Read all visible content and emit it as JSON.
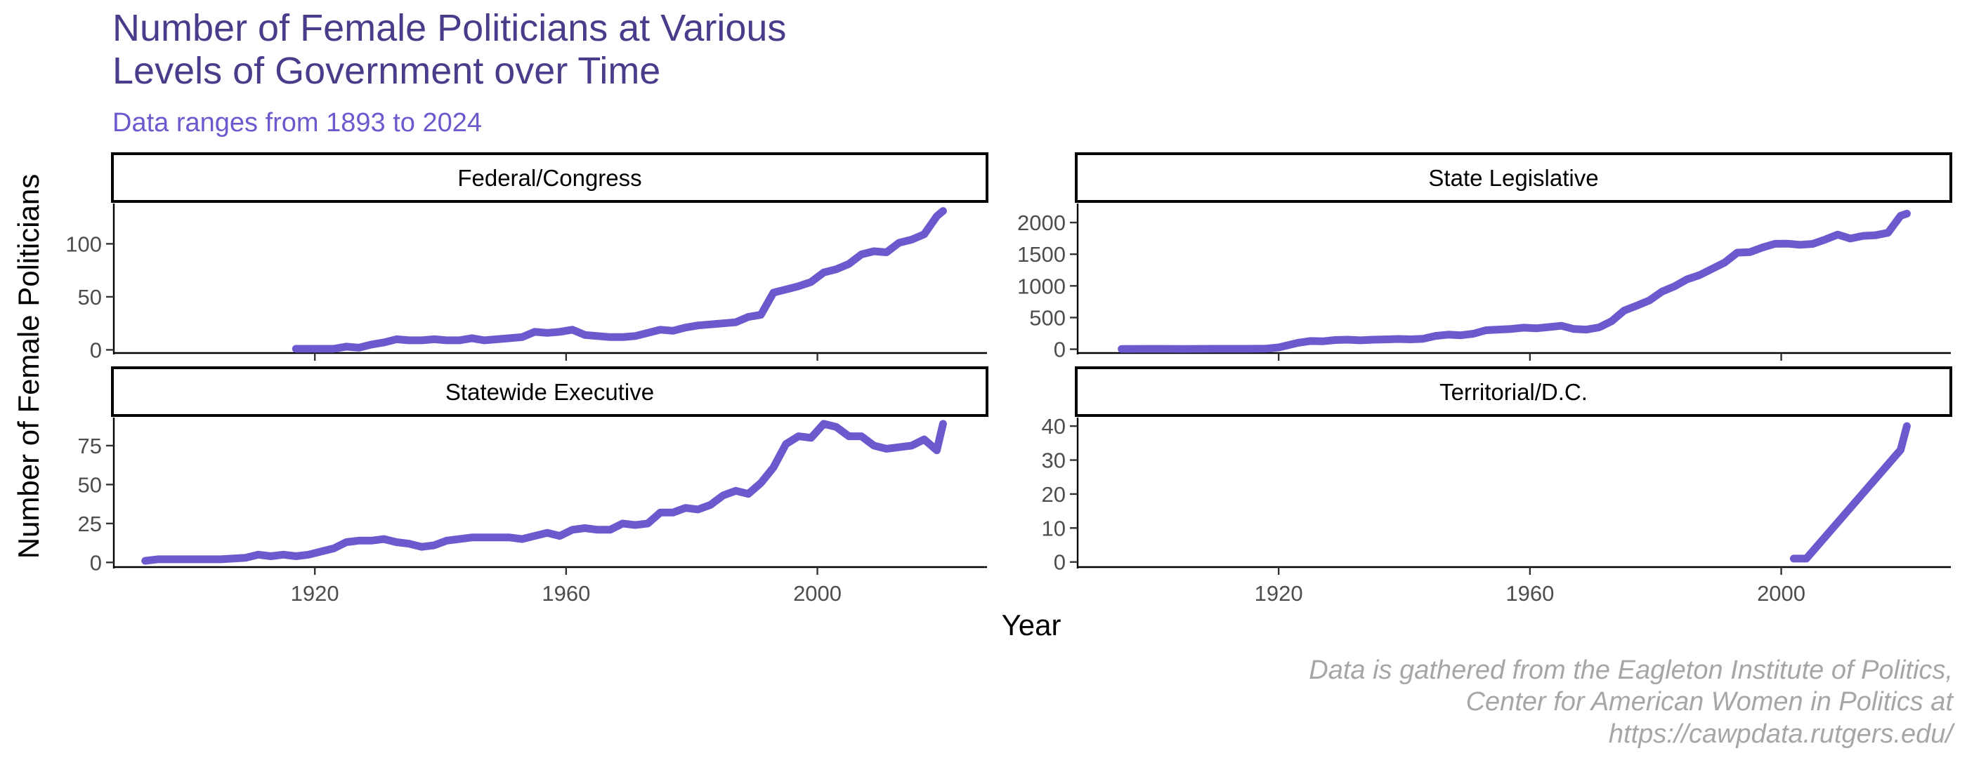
{
  "title_lines": [
    "Number of Female Politicians at Various",
    "Levels of Government over Time"
  ],
  "subtitle": "Data ranges from 1893 to 2024",
  "caption_lines": [
    "Data is gathered from the Eagleton Institute of Politics,",
    "Center for American Women in Politics at",
    "https://cawpdata.rutgers.edu/"
  ],
  "colors": {
    "title": "#483D8B",
    "subtitle": "#6A5ACD",
    "line": "#6A5ACD",
    "caption": "#a6a6a6"
  },
  "chart_data": {
    "type": "line",
    "xlabel": "Year",
    "ylabel": "Number of Female Politicians",
    "x_ticks": [
      1920,
      1960,
      2000
    ],
    "xlim": [
      1888,
      2027
    ],
    "panels": [
      {
        "label": "Federal/Congress",
        "ylim": [
          -3,
          138
        ],
        "y_ticks": [
          0,
          50,
          100
        ],
        "points": [
          [
            1917,
            1
          ],
          [
            1921,
            1
          ],
          [
            1923,
            1
          ],
          [
            1925,
            3
          ],
          [
            1927,
            2
          ],
          [
            1929,
            5
          ],
          [
            1931,
            7
          ],
          [
            1933,
            10
          ],
          [
            1935,
            9
          ],
          [
            1937,
            9
          ],
          [
            1939,
            10
          ],
          [
            1941,
            9
          ],
          [
            1943,
            9
          ],
          [
            1945,
            11
          ],
          [
            1947,
            9
          ],
          [
            1949,
            10
          ],
          [
            1951,
            11
          ],
          [
            1953,
            12
          ],
          [
            1955,
            17
          ],
          [
            1957,
            16
          ],
          [
            1959,
            17
          ],
          [
            1961,
            19
          ],
          [
            1963,
            14
          ],
          [
            1965,
            13
          ],
          [
            1967,
            12
          ],
          [
            1969,
            12
          ],
          [
            1971,
            13
          ],
          [
            1973,
            16
          ],
          [
            1975,
            19
          ],
          [
            1977,
            18
          ],
          [
            1979,
            21
          ],
          [
            1981,
            23
          ],
          [
            1983,
            24
          ],
          [
            1985,
            25
          ],
          [
            1987,
            26
          ],
          [
            1989,
            31
          ],
          [
            1991,
            33
          ],
          [
            1993,
            54
          ],
          [
            1995,
            57
          ],
          [
            1997,
            60
          ],
          [
            1999,
            64
          ],
          [
            2001,
            73
          ],
          [
            2003,
            76
          ],
          [
            2005,
            81
          ],
          [
            2007,
            90
          ],
          [
            2009,
            93
          ],
          [
            2011,
            92
          ],
          [
            2013,
            101
          ],
          [
            2015,
            104
          ],
          [
            2017,
            109
          ],
          [
            2019,
            126
          ],
          [
            2020,
            131
          ]
        ]
      },
      {
        "label": "State Legislative",
        "ylim": [
          -60,
          2300
        ],
        "y_ticks": [
          0,
          500,
          1000,
          1500,
          2000
        ],
        "points": [
          [
            1895,
            3
          ],
          [
            1900,
            5
          ],
          [
            1905,
            4
          ],
          [
            1910,
            6
          ],
          [
            1915,
            7
          ],
          [
            1918,
            10
          ],
          [
            1920,
            29
          ],
          [
            1923,
            100
          ],
          [
            1925,
            130
          ],
          [
            1927,
            125
          ],
          [
            1929,
            145
          ],
          [
            1931,
            150
          ],
          [
            1933,
            140
          ],
          [
            1935,
            150
          ],
          [
            1937,
            155
          ],
          [
            1939,
            162
          ],
          [
            1941,
            156
          ],
          [
            1943,
            165
          ],
          [
            1945,
            210
          ],
          [
            1947,
            230
          ],
          [
            1949,
            220
          ],
          [
            1951,
            245
          ],
          [
            1953,
            300
          ],
          [
            1955,
            310
          ],
          [
            1957,
            320
          ],
          [
            1959,
            340
          ],
          [
            1961,
            330
          ],
          [
            1963,
            350
          ],
          [
            1965,
            370
          ],
          [
            1967,
            319
          ],
          [
            1969,
            310
          ],
          [
            1971,
            344
          ],
          [
            1973,
            442
          ],
          [
            1975,
            610
          ],
          [
            1977,
            688
          ],
          [
            1979,
            770
          ],
          [
            1981,
            908
          ],
          [
            1983,
            991
          ],
          [
            1985,
            1103
          ],
          [
            1987,
            1170
          ],
          [
            1989,
            1270
          ],
          [
            1991,
            1368
          ],
          [
            1993,
            1524
          ],
          [
            1995,
            1532
          ],
          [
            1997,
            1605
          ],
          [
            1999,
            1664
          ],
          [
            2001,
            1666
          ],
          [
            2003,
            1648
          ],
          [
            2005,
            1663
          ],
          [
            2007,
            1732
          ],
          [
            2009,
            1809
          ],
          [
            2011,
            1747
          ],
          [
            2013,
            1789
          ],
          [
            2015,
            1799
          ],
          [
            2017,
            1839
          ],
          [
            2019,
            2107
          ],
          [
            2020,
            2140
          ]
        ]
      },
      {
        "label": "Statewide Executive",
        "ylim": [
          -3,
          93
        ],
        "y_ticks": [
          0,
          25,
          50,
          75
        ],
        "points": [
          [
            1893,
            1
          ],
          [
            1895,
            2
          ],
          [
            1899,
            2
          ],
          [
            1905,
            2
          ],
          [
            1909,
            3
          ],
          [
            1911,
            5
          ],
          [
            1913,
            4
          ],
          [
            1915,
            5
          ],
          [
            1917,
            4
          ],
          [
            1919,
            5
          ],
          [
            1921,
            7
          ],
          [
            1923,
            9
          ],
          [
            1925,
            13
          ],
          [
            1927,
            14
          ],
          [
            1929,
            14
          ],
          [
            1931,
            15
          ],
          [
            1933,
            13
          ],
          [
            1935,
            12
          ],
          [
            1937,
            10
          ],
          [
            1939,
            11
          ],
          [
            1941,
            14
          ],
          [
            1943,
            15
          ],
          [
            1945,
            16
          ],
          [
            1947,
            16
          ],
          [
            1949,
            16
          ],
          [
            1951,
            16
          ],
          [
            1953,
            15
          ],
          [
            1955,
            17
          ],
          [
            1957,
            19
          ],
          [
            1959,
            17
          ],
          [
            1961,
            21
          ],
          [
            1963,
            22
          ],
          [
            1965,
            21
          ],
          [
            1967,
            21
          ],
          [
            1969,
            25
          ],
          [
            1971,
            24
          ],
          [
            1973,
            25
          ],
          [
            1975,
            32
          ],
          [
            1977,
            32
          ],
          [
            1979,
            35
          ],
          [
            1981,
            34
          ],
          [
            1983,
            37
          ],
          [
            1985,
            43
          ],
          [
            1987,
            46
          ],
          [
            1989,
            44
          ],
          [
            1991,
            51
          ],
          [
            1993,
            61
          ],
          [
            1995,
            76
          ],
          [
            1997,
            81
          ],
          [
            1999,
            80
          ],
          [
            2001,
            89
          ],
          [
            2003,
            87
          ],
          [
            2005,
            81
          ],
          [
            2007,
            81
          ],
          [
            2009,
            75
          ],
          [
            2011,
            73
          ],
          [
            2013,
            74
          ],
          [
            2015,
            75
          ],
          [
            2017,
            79
          ],
          [
            2019,
            72
          ],
          [
            2020,
            89
          ]
        ]
      },
      {
        "label": "Territorial/D.C.",
        "ylim": [
          -1.5,
          42.5
        ],
        "y_ticks": [
          0,
          10,
          20,
          30,
          40
        ],
        "points": [
          [
            2002,
            1
          ],
          [
            2004,
            1
          ],
          [
            2019,
            33
          ],
          [
            2020,
            40
          ]
        ]
      }
    ]
  }
}
